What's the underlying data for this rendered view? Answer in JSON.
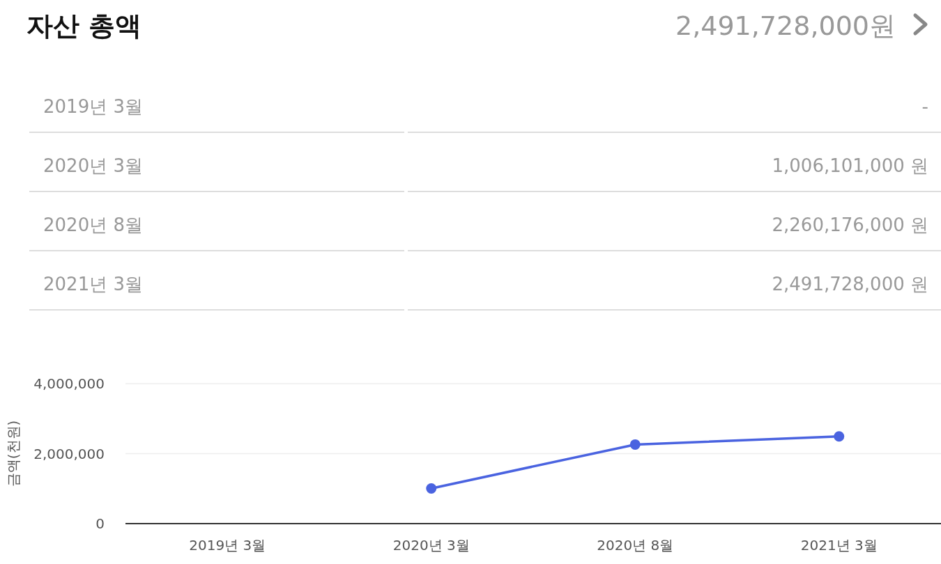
{
  "chart_data": [
    {
      "type": "other",
      "title": "자산 총액",
      "subtitle": "2,491,728,000원",
      "categories": [
        "2019년 3월",
        "2020년 3월",
        "2020년 8월",
        "2021년 3월"
      ],
      "value_labels": [
        "-",
        "1,006,101,000 원",
        "2,260,176,000 원",
        "2,491,728,000 원"
      ]
    },
    {
      "type": "line",
      "ylabel": "금액(천원)",
      "categories": [
        "2019년 3월",
        "2020년 3월",
        "2020년 8월",
        "2021년 3월"
      ],
      "series": [
        {
          "color": "#4a63e0",
          "values": [
            null,
            1006101,
            2260176,
            2491728
          ]
        }
      ],
      "ylim": [
        0,
        4000000
      ],
      "yticks": [
        {
          "value": 0,
          "label": "0"
        },
        {
          "value": 2000000,
          "label": "2,000,000"
        },
        {
          "value": 4000000,
          "label": "4,000,000"
        }
      ],
      "grid": "y",
      "marker": "circle",
      "line_style": "solid"
    }
  ]
}
